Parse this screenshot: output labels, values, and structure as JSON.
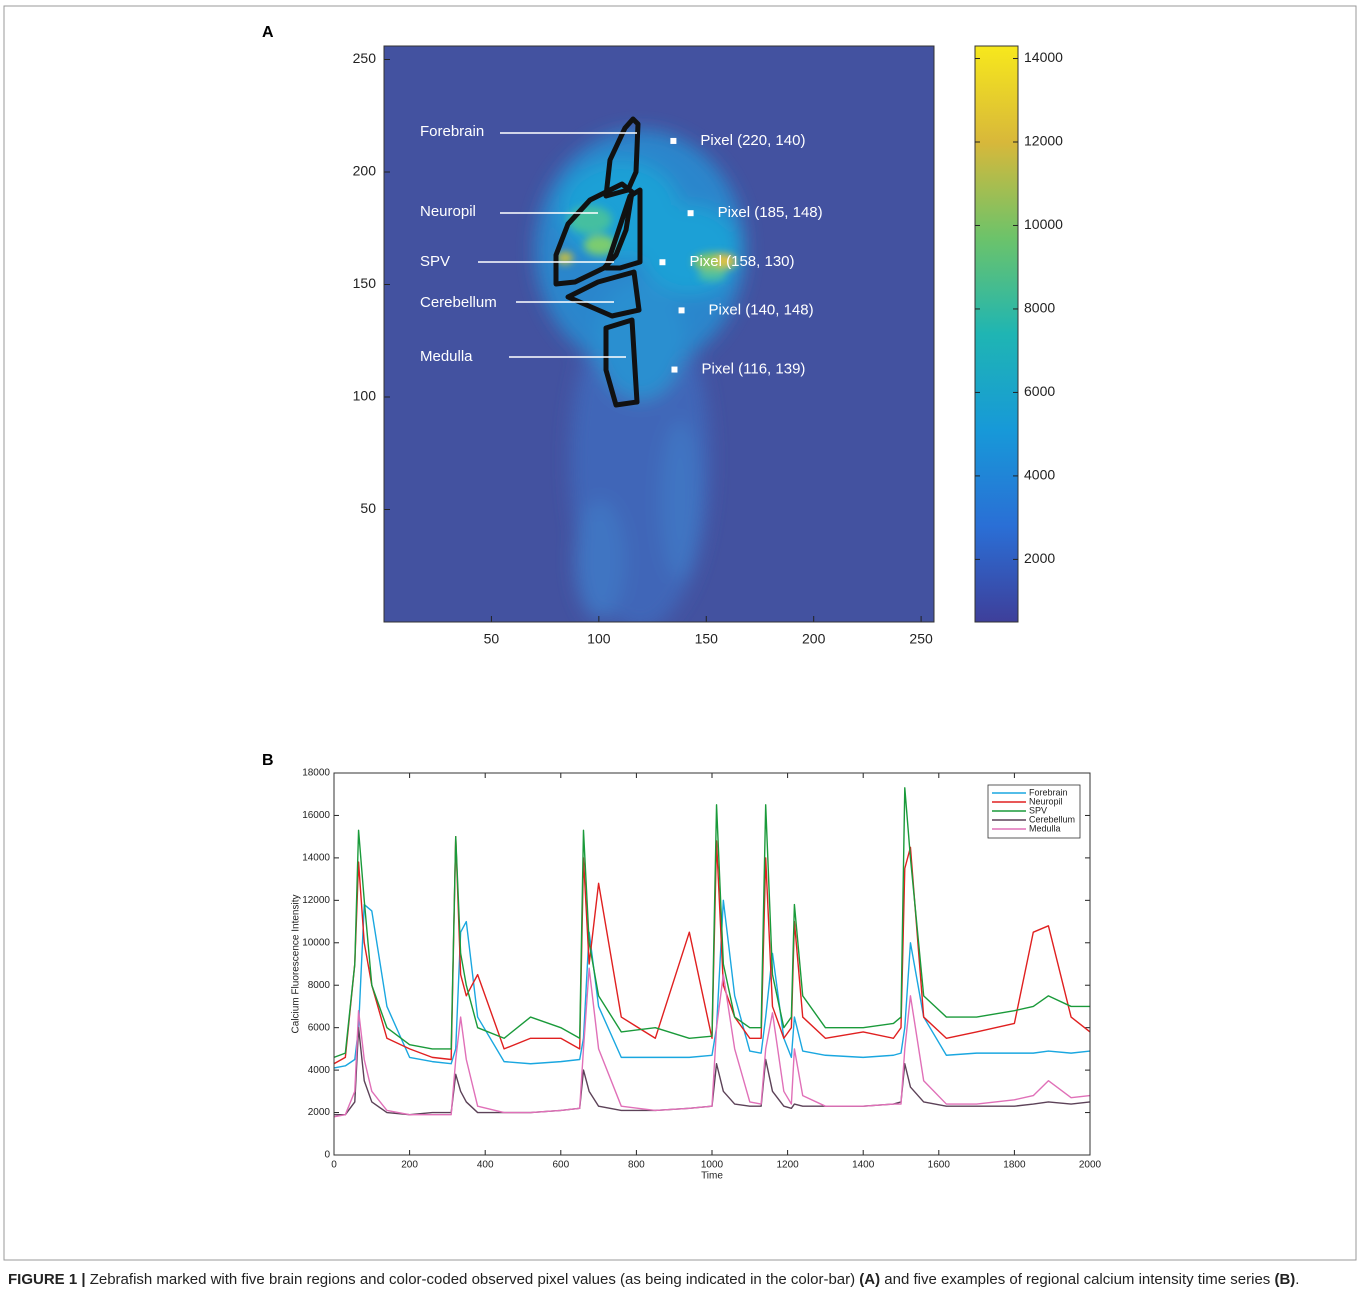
{
  "chart_data": [
    {
      "type": "image",
      "panel": "A",
      "xlim": [
        0,
        256
      ],
      "ylim": [
        0,
        256
      ],
      "xticks": [
        50,
        100,
        150,
        200,
        250
      ],
      "yticks": [
        50,
        100,
        150,
        200,
        250
      ],
      "background": "#4352a0",
      "colorbar": {
        "clim": [
          500,
          14300
        ],
        "ticks": [
          2000,
          4000,
          6000,
          8000,
          10000,
          12000,
          14000
        ],
        "colormap": [
          "#3e3f9a",
          "#2a6fd6",
          "#1799d8",
          "#1fb5b3",
          "#6cc36a",
          "#d8b83a",
          "#f7e81c"
        ]
      },
      "regions": [
        "Forebrain",
        "Neuropil",
        "SPV",
        "Cerebellum",
        "Medulla"
      ],
      "pixels": [
        {
          "label": "Pixel (220, 140)",
          "x": 134.7,
          "y": 213.8
        },
        {
          "label": "Pixel (185, 148)",
          "x": 142.7,
          "y": 181.7
        },
        {
          "label": "Pixel (158, 130)",
          "x": 129.6,
          "y": 159.9
        },
        {
          "label": "Pixel (140, 148)",
          "x": 138.5,
          "y": 138.5
        },
        {
          "label": "Pixel (116, 139)",
          "x": 135.2,
          "y": 112.2
        }
      ]
    },
    {
      "type": "line",
      "panel": "B",
      "x_label": "Time",
      "y_label": "Calcium Fluorescence Intensity",
      "xlim": [
        0,
        2000
      ],
      "ylim": [
        0,
        18000
      ],
      "xticks": [
        0,
        200,
        400,
        600,
        800,
        1000,
        1200,
        1400,
        1600,
        1800,
        2000
      ],
      "yticks": [
        0,
        2000,
        4000,
        6000,
        8000,
        10000,
        12000,
        14000,
        16000,
        18000
      ],
      "grid": false,
      "legend": "upper-right",
      "x": [
        0,
        30,
        55,
        65,
        80,
        100,
        140,
        200,
        260,
        310,
        322,
        335,
        350,
        380,
        450,
        520,
        600,
        650,
        660,
        675,
        700,
        760,
        850,
        940,
        1000,
        1012,
        1030,
        1060,
        1100,
        1130,
        1142,
        1160,
        1190,
        1210,
        1218,
        1240,
        1300,
        1400,
        1480,
        1500,
        1510,
        1525,
        1560,
        1620,
        1700,
        1800,
        1850,
        1890,
        1950,
        2000
      ],
      "series": [
        {
          "name": "Forebrain",
          "color": "#1aa7e0",
          "values": [
            4100,
            4200,
            4500,
            6000,
            11800,
            11500,
            7000,
            4600,
            4400,
            4300,
            5000,
            10500,
            11000,
            6500,
            4400,
            4300,
            4400,
            4500,
            5500,
            10500,
            7000,
            4600,
            4600,
            4600,
            4700,
            6000,
            12000,
            7500,
            4900,
            4800,
            6500,
            9500,
            5500,
            4600,
            6500,
            4900,
            4700,
            4600,
            4700,
            4800,
            6000,
            10000,
            6500,
            4700,
            4800,
            4800,
            4800,
            4900,
            4800,
            4900
          ]
        },
        {
          "name": "Neuropil",
          "color": "#e02020",
          "values": [
            4300,
            4600,
            9000,
            13800,
            10000,
            8000,
            5500,
            5000,
            4600,
            4500,
            15000,
            8500,
            7500,
            8500,
            5000,
            5500,
            5500,
            5000,
            14000,
            9000,
            12800,
            6500,
            5500,
            10500,
            5500,
            14800,
            8000,
            6500,
            5500,
            5500,
            14000,
            7000,
            5500,
            6000,
            11000,
            6500,
            5500,
            5800,
            5500,
            6000,
            13500,
            14500,
            6500,
            5500,
            5800,
            6200,
            10500,
            10800,
            6500,
            5800
          ]
        },
        {
          "name": "SPV",
          "color": "#1a9a3a",
          "values": [
            4600,
            4800,
            9000,
            15300,
            12000,
            8000,
            6000,
            5200,
            5000,
            5000,
            15000,
            9500,
            8000,
            6000,
            5500,
            6500,
            6000,
            5500,
            15300,
            10000,
            7500,
            5800,
            6000,
            5500,
            5600,
            16500,
            9000,
            6500,
            6000,
            6000,
            16500,
            8500,
            6000,
            6500,
            11800,
            7500,
            6000,
            6000,
            6200,
            6500,
            17300,
            14000,
            7500,
            6500,
            6500,
            6800,
            7000,
            7500,
            7000,
            7000
          ]
        },
        {
          "name": "Cerebellum",
          "color": "#5c4258",
          "values": [
            1900,
            1900,
            2500,
            6000,
            3500,
            2500,
            2000,
            1900,
            2000,
            2000,
            3800,
            3000,
            2500,
            2000,
            2000,
            2000,
            2100,
            2200,
            4000,
            3000,
            2300,
            2100,
            2100,
            2200,
            2300,
            4300,
            3000,
            2400,
            2300,
            2300,
            4500,
            3000,
            2300,
            2200,
            2400,
            2300,
            2300,
            2300,
            2400,
            2500,
            4300,
            3200,
            2500,
            2300,
            2300,
            2300,
            2400,
            2500,
            2400,
            2500
          ]
        },
        {
          "name": "Medulla",
          "color": "#e070b8",
          "values": [
            1800,
            1900,
            3000,
            6800,
            4500,
            3000,
            2100,
            1900,
            1900,
            1900,
            4500,
            6500,
            4500,
            2300,
            2000,
            2000,
            2100,
            2200,
            5000,
            8800,
            5000,
            2300,
            2100,
            2200,
            2300,
            6000,
            8500,
            5000,
            2500,
            2400,
            5000,
            6700,
            3000,
            2400,
            5000,
            2800,
            2300,
            2300,
            2400,
            2400,
            5000,
            7500,
            3500,
            2400,
            2400,
            2600,
            2800,
            3500,
            2700,
            2800
          ]
        }
      ]
    }
  ],
  "caption": {
    "label": "FIGURE 1 |",
    "parts": [
      " Zebrafish marked with five brain regions and color-coded observed pixel values (as being indicated in the color-bar) ",
      "(A)",
      " and five examples of regional calcium intensity time series ",
      "(B)",
      "."
    ]
  }
}
